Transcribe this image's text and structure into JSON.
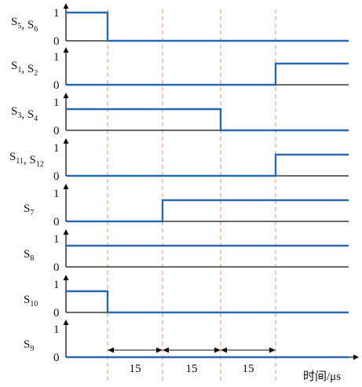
{
  "level_high": "1",
  "level_low": "0",
  "time_axis_label": "时间/μs",
  "intervals": [
    {
      "label": "15",
      "from": 1,
      "to": 2
    },
    {
      "label": "15",
      "from": 2,
      "to": 3
    },
    {
      "label": "15",
      "from": 3,
      "to": 4
    }
  ],
  "signals": [
    {
      "id": "s5-s6",
      "label_parts": [
        [
          "S",
          "5"
        ],
        [
          "S",
          "6"
        ]
      ],
      "levels": [
        1,
        0,
        0,
        0,
        0
      ]
    },
    {
      "id": "s1-s2",
      "label_parts": [
        [
          "S",
          "1"
        ],
        [
          "S",
          "2"
        ]
      ],
      "levels": [
        0,
        0,
        0,
        0,
        0.75
      ]
    },
    {
      "id": "s3-s4",
      "label_parts": [
        [
          "S",
          "3"
        ],
        [
          "S",
          "4"
        ]
      ],
      "levels": [
        0.75,
        0.75,
        0.75,
        0,
        0
      ]
    },
    {
      "id": "s11-s12",
      "label_parts": [
        [
          "S",
          "11"
        ],
        [
          "S",
          "12"
        ]
      ],
      "levels": [
        0,
        0,
        0,
        0,
        0.75
      ]
    },
    {
      "id": "s7",
      "label_parts": [
        [
          "S",
          "7"
        ]
      ],
      "levels": [
        0,
        0,
        0.75,
        0.75,
        0.75
      ]
    },
    {
      "id": "s8",
      "label_parts": [
        [
          "S",
          "8"
        ]
      ],
      "levels": [
        0.75,
        0.75,
        0.75,
        0.75,
        0.75
      ]
    },
    {
      "id": "s10",
      "label_parts": [
        [
          "S",
          "10"
        ]
      ],
      "levels": [
        0.75,
        0,
        0,
        0,
        0
      ]
    },
    {
      "id": "s9",
      "label_parts": [
        [
          "S",
          "9"
        ]
      ],
      "levels": [
        0,
        0,
        0,
        0,
        0
      ]
    }
  ],
  "colors": {
    "wave": "#2a68b0",
    "guide": "#e4897a",
    "axis": "#111111"
  }
}
